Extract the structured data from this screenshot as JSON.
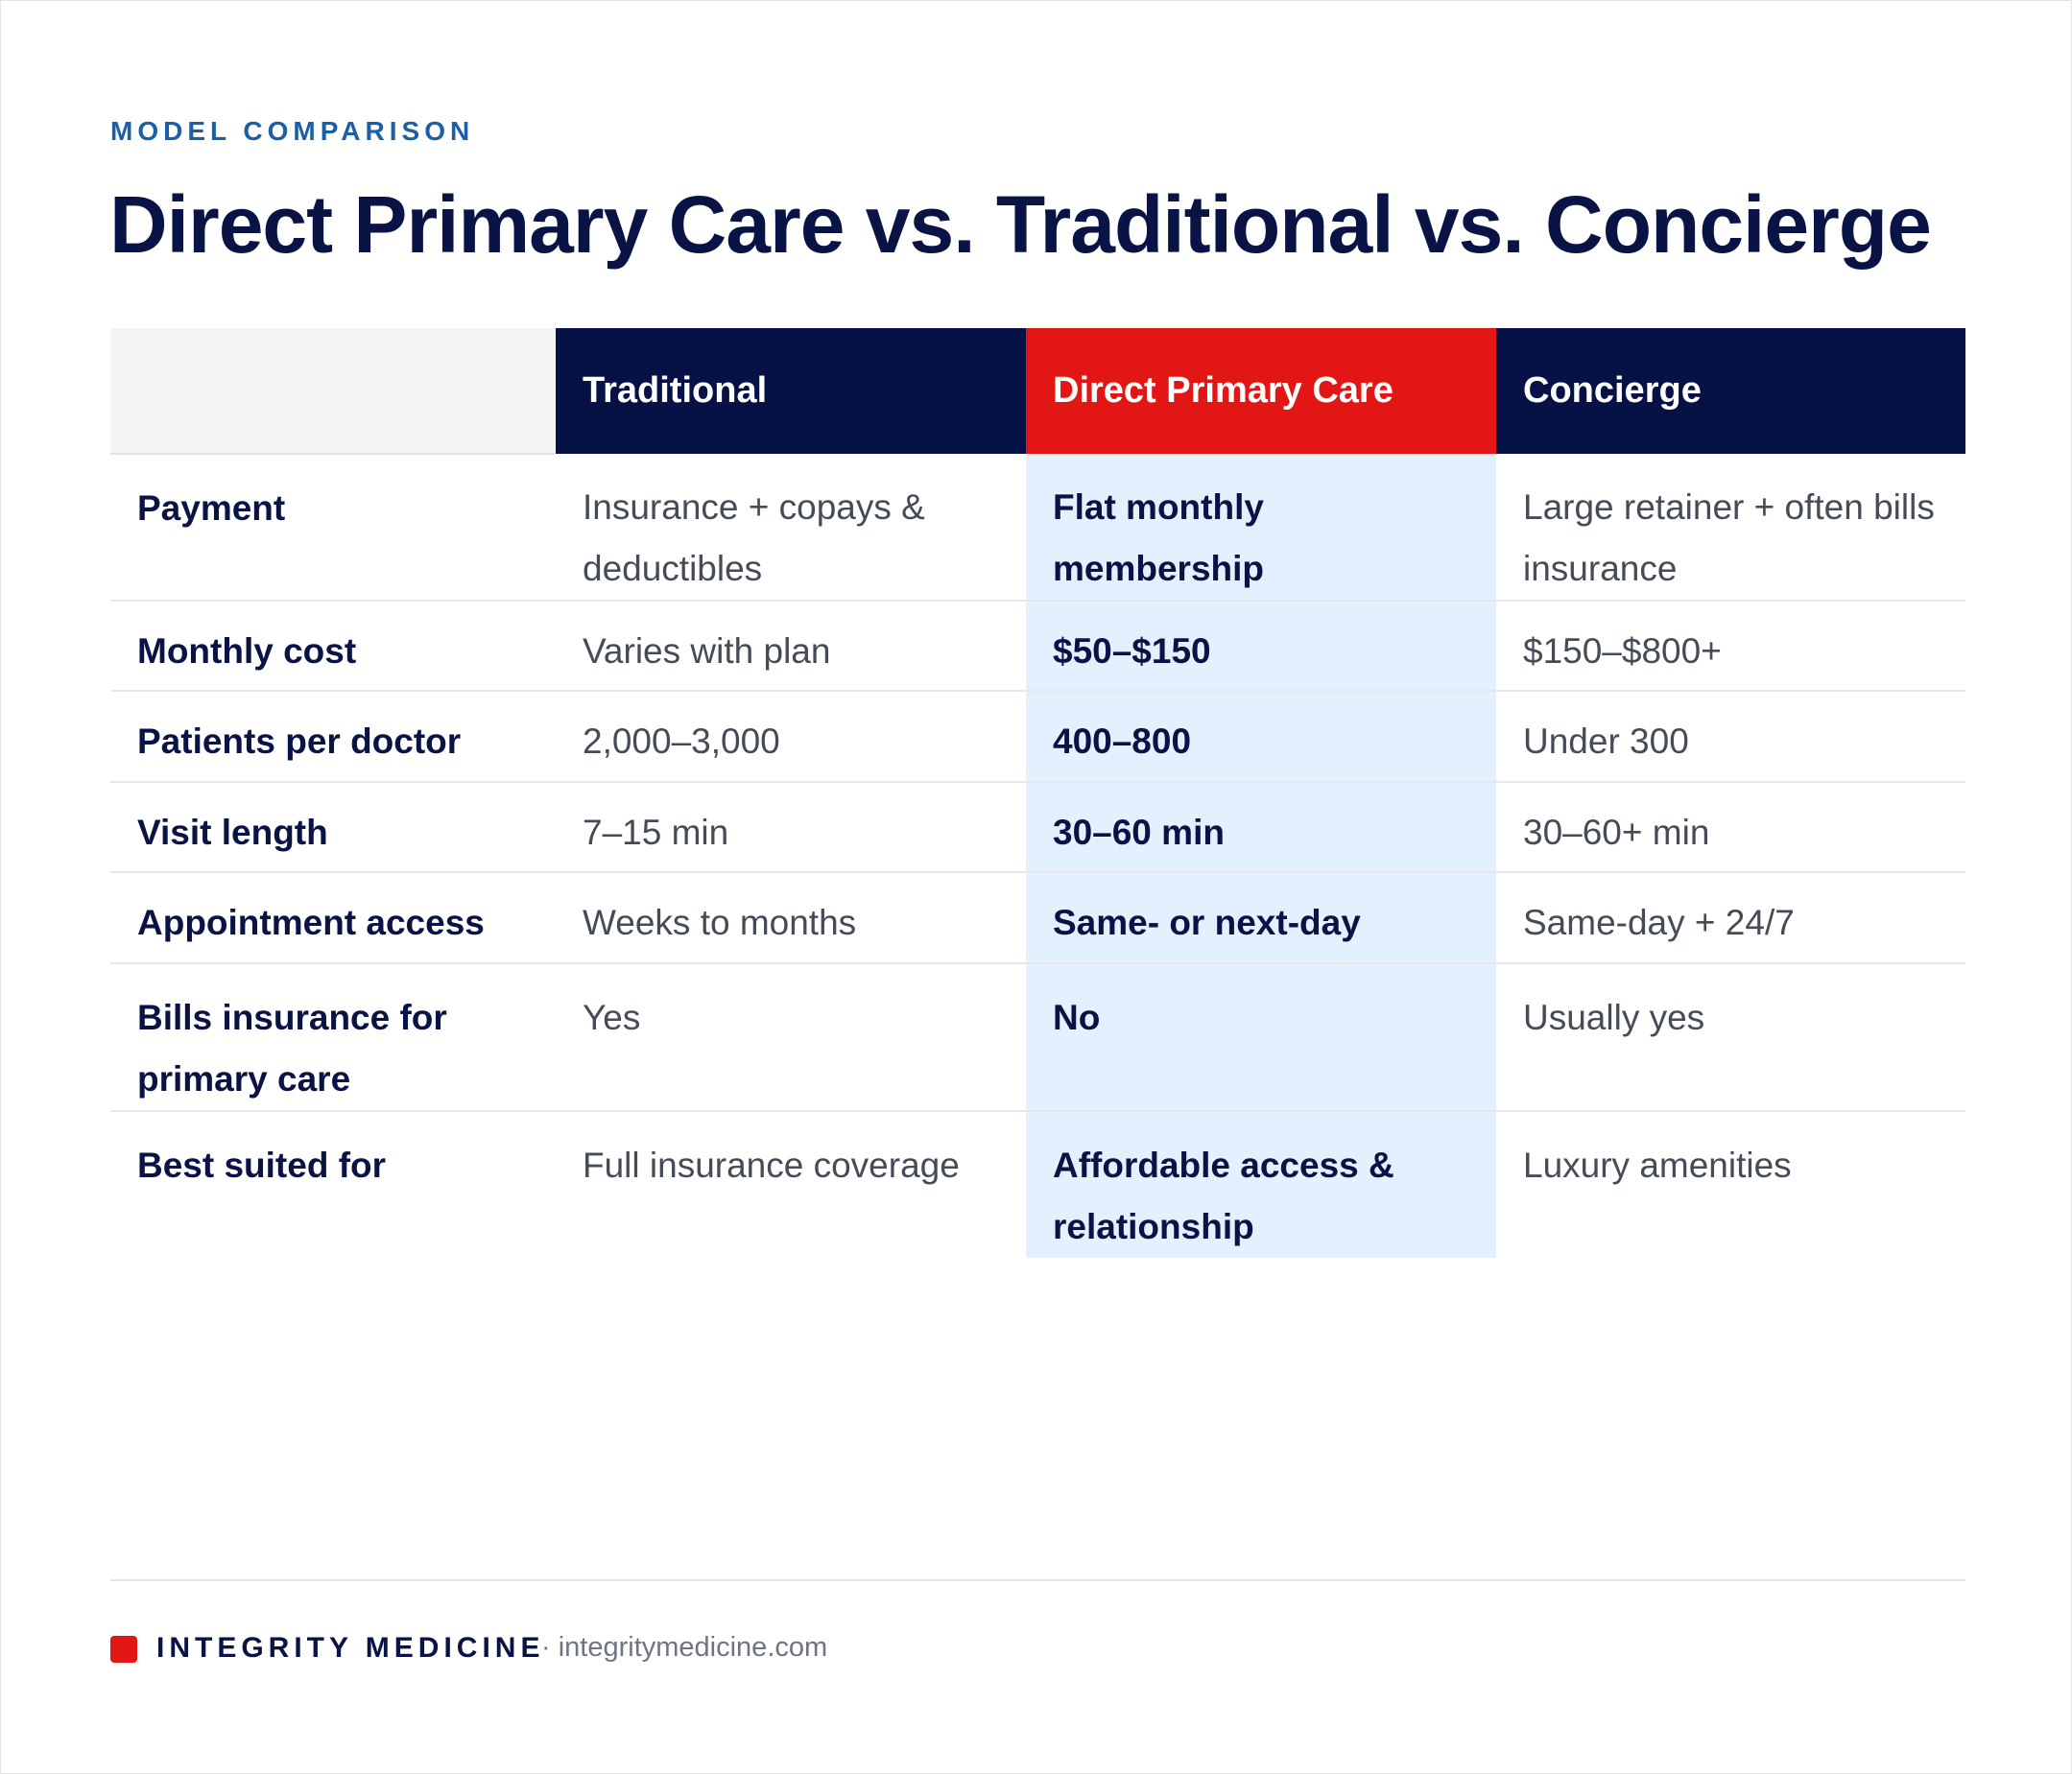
{
  "eyebrow": "MODEL COMPARISON",
  "title": "Direct Primary Care vs. Traditional vs. Concierge",
  "table": {
    "columns": [
      "Traditional",
      "Direct Primary Care",
      "Concierge"
    ],
    "rows": [
      {
        "label": "Payment",
        "traditional": "Insurance + copays & deductibles",
        "dpc": "Flat monthly membership",
        "concierge": "Large retainer + often bills insurance"
      },
      {
        "label": "Monthly cost",
        "traditional": "Varies with plan",
        "dpc": "$50–$150",
        "concierge": "$150–$800+"
      },
      {
        "label": "Patients per doctor",
        "traditional": "2,000–3,000",
        "dpc": "400–800",
        "concierge": "Under 300"
      },
      {
        "label": "Visit length",
        "traditional": "7–15 min",
        "dpc": "30–60 min",
        "concierge": "30–60+ min"
      },
      {
        "label": "Appointment access",
        "traditional": "Weeks to months",
        "dpc": "Same- or next-day",
        "concierge": "Same-day + 24/7"
      },
      {
        "label": "Bills insurance for primary care",
        "traditional": "Yes",
        "dpc": "No",
        "concierge": "Usually yes"
      },
      {
        "label": "Best suited for",
        "traditional": "Full insurance coverage",
        "dpc": "Affordable access & relationship",
        "concierge": "Luxury amenities"
      }
    ]
  },
  "footer": {
    "brand": "INTEGRITY MEDICINE",
    "url": "· integritymedicine.com"
  },
  "colors": {
    "navy": "#061146",
    "accent_red": "#e31616",
    "highlight_blue": "#e3f0fd",
    "eyebrow_blue": "#1b5fa8"
  }
}
